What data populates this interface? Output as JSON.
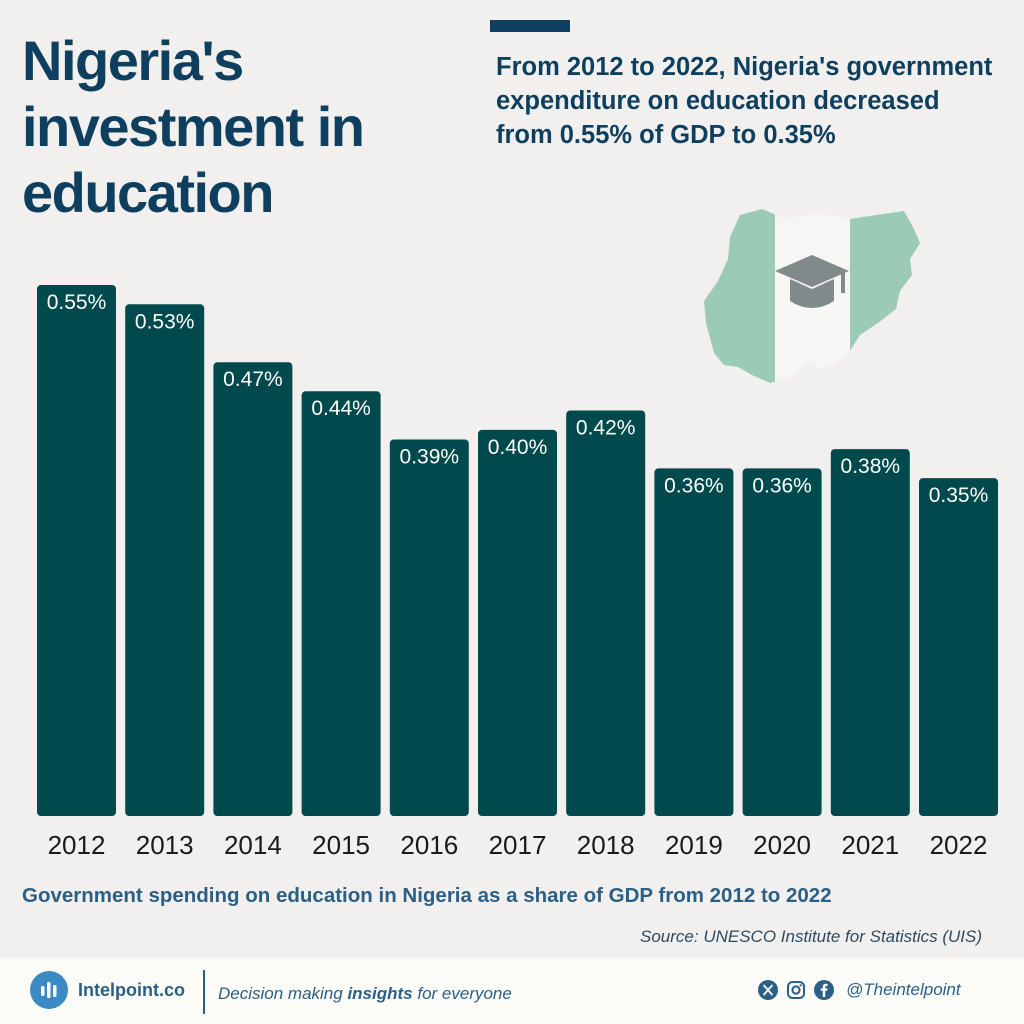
{
  "header": {
    "title": "Nigeria's investment in education",
    "subtitle": "From 2012 to 2022, Nigeria's government expenditure on education decreased from 0.55% of GDP to 0.35%"
  },
  "chart_data": {
    "type": "bar",
    "categories": [
      "2012",
      "2013",
      "2014",
      "2015",
      "2016",
      "2017",
      "2018",
      "2019",
      "2020",
      "2021",
      "2022"
    ],
    "values": [
      0.55,
      0.53,
      0.47,
      0.44,
      0.39,
      0.4,
      0.42,
      0.36,
      0.36,
      0.38,
      0.35
    ],
    "value_labels": [
      "0.55%",
      "0.53%",
      "0.47%",
      "0.44%",
      "0.39%",
      "0.40%",
      "0.42%",
      "0.36%",
      "0.36%",
      "0.38%",
      "0.35%"
    ],
    "title": "",
    "xlabel": "",
    "ylabel": "",
    "ylim": [
      0,
      0.55
    ],
    "grid": false,
    "bar_color": "#004a4e"
  },
  "caption": "Government spending on education in Nigeria as a share of GDP from 2012 to 2022",
  "source": "Source: UNESCO Institute for Statistics (UIS)",
  "footer": {
    "brand": "Intelpoint.co",
    "tagline_prefix": "Decision making ",
    "tagline_emphasis": "insights",
    "tagline_suffix": " for everyone",
    "handle": "@Theintelpoint",
    "icons": [
      "x-icon",
      "instagram-icon",
      "facebook-icon"
    ]
  },
  "colors": {
    "title": "#0e3f5e",
    "caption": "#2c5f86",
    "map_green": "#9ccbb5",
    "map_white": "#f6f6f4",
    "cap_gray": "#808a8a"
  }
}
